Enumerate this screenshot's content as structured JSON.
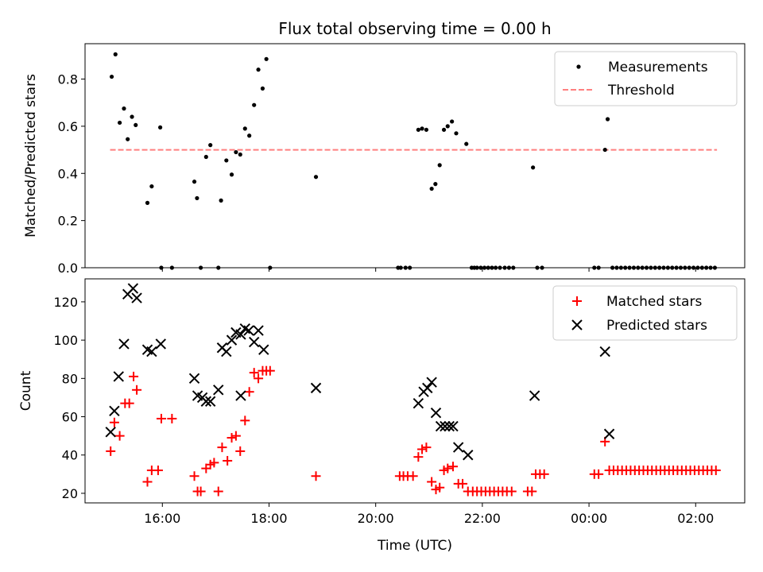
{
  "title": "Flux total observing time = 0.00 h",
  "xlabel": "Time (UTC)",
  "x_ticks": [
    {
      "t": 16.0,
      "label": "16:00"
    },
    {
      "t": 18.0,
      "label": "18:00"
    },
    {
      "t": 20.0,
      "label": "20:00"
    },
    {
      "t": 22.0,
      "label": "22:00"
    },
    {
      "t": 24.0,
      "label": "00:00"
    },
    {
      "t": 26.0,
      "label": "02:00"
    }
  ],
  "colors": {
    "measurements": "#000000",
    "threshold": "#ff7f7f",
    "matched": "#ff0000",
    "predicted": "#000000"
  },
  "chart_data": [
    {
      "type": "scatter",
      "ylabel": "Matched/Predicted stars",
      "xlim": [
        14.55,
        26.92
      ],
      "ylim": [
        0.0,
        0.95
      ],
      "y_ticks": [
        {
          "v": 0.0,
          "label": "0.0"
        },
        {
          "v": 0.2,
          "label": "0.2"
        },
        {
          "v": 0.4,
          "label": "0.4"
        },
        {
          "v": 0.6,
          "label": "0.6"
        },
        {
          "v": 0.8,
          "label": "0.8"
        }
      ],
      "legend": {
        "position": "top-right",
        "entries": [
          "Measurements",
          "Threshold"
        ]
      },
      "threshold": {
        "name": "Threshold",
        "y": 0.5,
        "x_range": [
          15.02,
          26.4
        ]
      },
      "series": [
        {
          "name": "Measurements",
          "x": [
            15.05,
            15.12,
            15.2,
            15.28,
            15.35,
            15.43,
            15.5,
            15.72,
            15.8,
            15.98,
            15.96,
            16.18,
            16.6,
            16.65,
            16.72,
            16.82,
            16.9,
            17.05,
            17.1,
            17.2,
            17.3,
            17.38,
            17.46,
            17.55,
            17.63,
            17.72,
            17.8,
            17.88,
            17.95,
            18.02,
            18.88,
            20.42,
            20.47,
            20.56,
            20.64,
            20.8,
            20.87,
            20.95,
            21.05,
            21.12,
            21.2,
            21.28,
            21.35,
            21.43,
            21.51,
            21.7,
            21.8,
            21.85,
            21.9,
            21.97,
            22.04,
            22.11,
            22.18,
            22.25,
            22.33,
            22.42,
            22.5,
            22.58,
            22.95,
            23.03,
            23.12,
            24.1,
            24.18,
            24.3,
            24.35,
            24.44,
            24.52,
            24.6,
            24.68,
            24.76,
            24.84,
            24.92,
            25.0,
            25.08,
            25.16,
            25.24,
            25.32,
            25.4,
            25.48,
            25.56,
            25.64,
            25.72,
            25.8,
            25.88,
            25.96,
            26.04,
            26.12,
            26.2,
            26.28,
            26.36
          ],
          "y": [
            0.81,
            0.905,
            0.615,
            0.675,
            0.545,
            0.64,
            0.605,
            0.275,
            0.345,
            0.0,
            0.595,
            0.0,
            0.365,
            0.295,
            0.0,
            0.47,
            0.52,
            0.0,
            0.285,
            0.455,
            0.395,
            0.49,
            0.48,
            0.59,
            0.56,
            0.69,
            0.84,
            0.76,
            0.885,
            0.0,
            0.385,
            0.0,
            0.0,
            0.0,
            0.0,
            0.585,
            0.59,
            0.585,
            0.335,
            0.355,
            0.435,
            0.585,
            0.6,
            0.62,
            0.57,
            0.525,
            0.0,
            0.0,
            0.0,
            0.0,
            0.0,
            0.0,
            0.0,
            0.0,
            0.0,
            0.0,
            0.0,
            0.0,
            0.425,
            0.0,
            0.0,
            0.0,
            0.0,
            0.5,
            0.63,
            0.0,
            0.0,
            0.0,
            0.0,
            0.0,
            0.0,
            0.0,
            0.0,
            0.0,
            0.0,
            0.0,
            0.0,
            0.0,
            0.0,
            0.0,
            0.0,
            0.0,
            0.0,
            0.0,
            0.0,
            0.0,
            0.0,
            0.0,
            0.0,
            0.0
          ]
        }
      ]
    },
    {
      "type": "scatter",
      "ylabel": "Count",
      "xlim": [
        14.55,
        26.92
      ],
      "ylim": [
        15,
        132
      ],
      "y_ticks": [
        {
          "v": 20,
          "label": "20"
        },
        {
          "v": 40,
          "label": "40"
        },
        {
          "v": 60,
          "label": "60"
        },
        {
          "v": 80,
          "label": "80"
        },
        {
          "v": 100,
          "label": "100"
        },
        {
          "v": 120,
          "label": "120"
        }
      ],
      "legend": {
        "position": "top-right",
        "entries": [
          "Matched stars",
          "Predicted stars"
        ]
      },
      "series": [
        {
          "name": "Matched stars",
          "marker": "plus",
          "x": [
            15.03,
            15.1,
            15.2,
            15.3,
            15.38,
            15.46,
            15.52,
            15.72,
            15.8,
            15.92,
            15.98,
            16.18,
            16.6,
            16.66,
            16.72,
            16.82,
            16.9,
            16.97,
            17.05,
            17.12,
            17.22,
            17.3,
            17.38,
            17.46,
            17.55,
            17.63,
            17.72,
            17.8,
            17.88,
            17.95,
            18.02,
            18.88,
            20.45,
            20.52,
            20.6,
            20.7,
            20.8,
            20.87,
            20.95,
            21.05,
            21.13,
            21.2,
            21.28,
            21.35,
            21.45,
            21.55,
            21.63,
            21.73,
            21.82,
            21.9,
            21.98,
            22.06,
            22.14,
            22.22,
            22.3,
            22.38,
            22.46,
            22.55,
            22.85,
            22.93,
            23.0,
            23.08,
            23.16,
            24.1,
            24.18,
            24.3,
            24.38,
            24.46,
            24.54,
            24.62,
            24.7,
            24.78,
            24.86,
            24.94,
            25.02,
            25.1,
            25.18,
            25.26,
            25.34,
            25.42,
            25.5,
            25.58,
            25.66,
            25.74,
            25.82,
            25.9,
            25.98,
            26.06,
            26.14,
            26.22,
            26.3,
            26.38
          ],
          "y": [
            42,
            57,
            50,
            67,
            67,
            81,
            74,
            26,
            32,
            32,
            59,
            59,
            29,
            21,
            21,
            33,
            35,
            36,
            21,
            44,
            37,
            49,
            50,
            42,
            58,
            73,
            83,
            80,
            84,
            84,
            84,
            29,
            29,
            29,
            29,
            29,
            39,
            43,
            44,
            26,
            22,
            23,
            32,
            33,
            34,
            25,
            25,
            21,
            21,
            21,
            21,
            21,
            21,
            21,
            21,
            21,
            21,
            21,
            21,
            21,
            30,
            30,
            30,
            30,
            30,
            47,
            32,
            32,
            32,
            32,
            32,
            32,
            32,
            32,
            32,
            32,
            32,
            32,
            32,
            32,
            32,
            32,
            32,
            32,
            32,
            32,
            32,
            32,
            32,
            32,
            32,
            32
          ]
        },
        {
          "name": "Predicted stars",
          "marker": "x",
          "x": [
            15.03,
            15.1,
            15.18,
            15.28,
            15.35,
            15.45,
            15.52,
            15.72,
            15.8,
            15.97,
            16.6,
            16.66,
            16.75,
            16.82,
            16.9,
            17.05,
            17.12,
            17.2,
            17.3,
            17.38,
            17.47,
            17.47,
            17.55,
            17.62,
            17.72,
            17.8,
            17.9,
            18.88,
            20.8,
            20.9,
            20.97,
            21.05,
            21.13,
            21.22,
            21.3,
            21.38,
            21.45,
            21.55,
            21.73,
            22.98,
            24.3,
            24.38
          ],
          "y": [
            52,
            63,
            81,
            98,
            124,
            127,
            122,
            95,
            94,
            98,
            80,
            71,
            70,
            68,
            68,
            74,
            96,
            94,
            100,
            104,
            103,
            71,
            106,
            105,
            99,
            105,
            95,
            75,
            67,
            73,
            75,
            78,
            62,
            55,
            55,
            55,
            55,
            44,
            40,
            71,
            94,
            51
          ]
        }
      ]
    }
  ]
}
